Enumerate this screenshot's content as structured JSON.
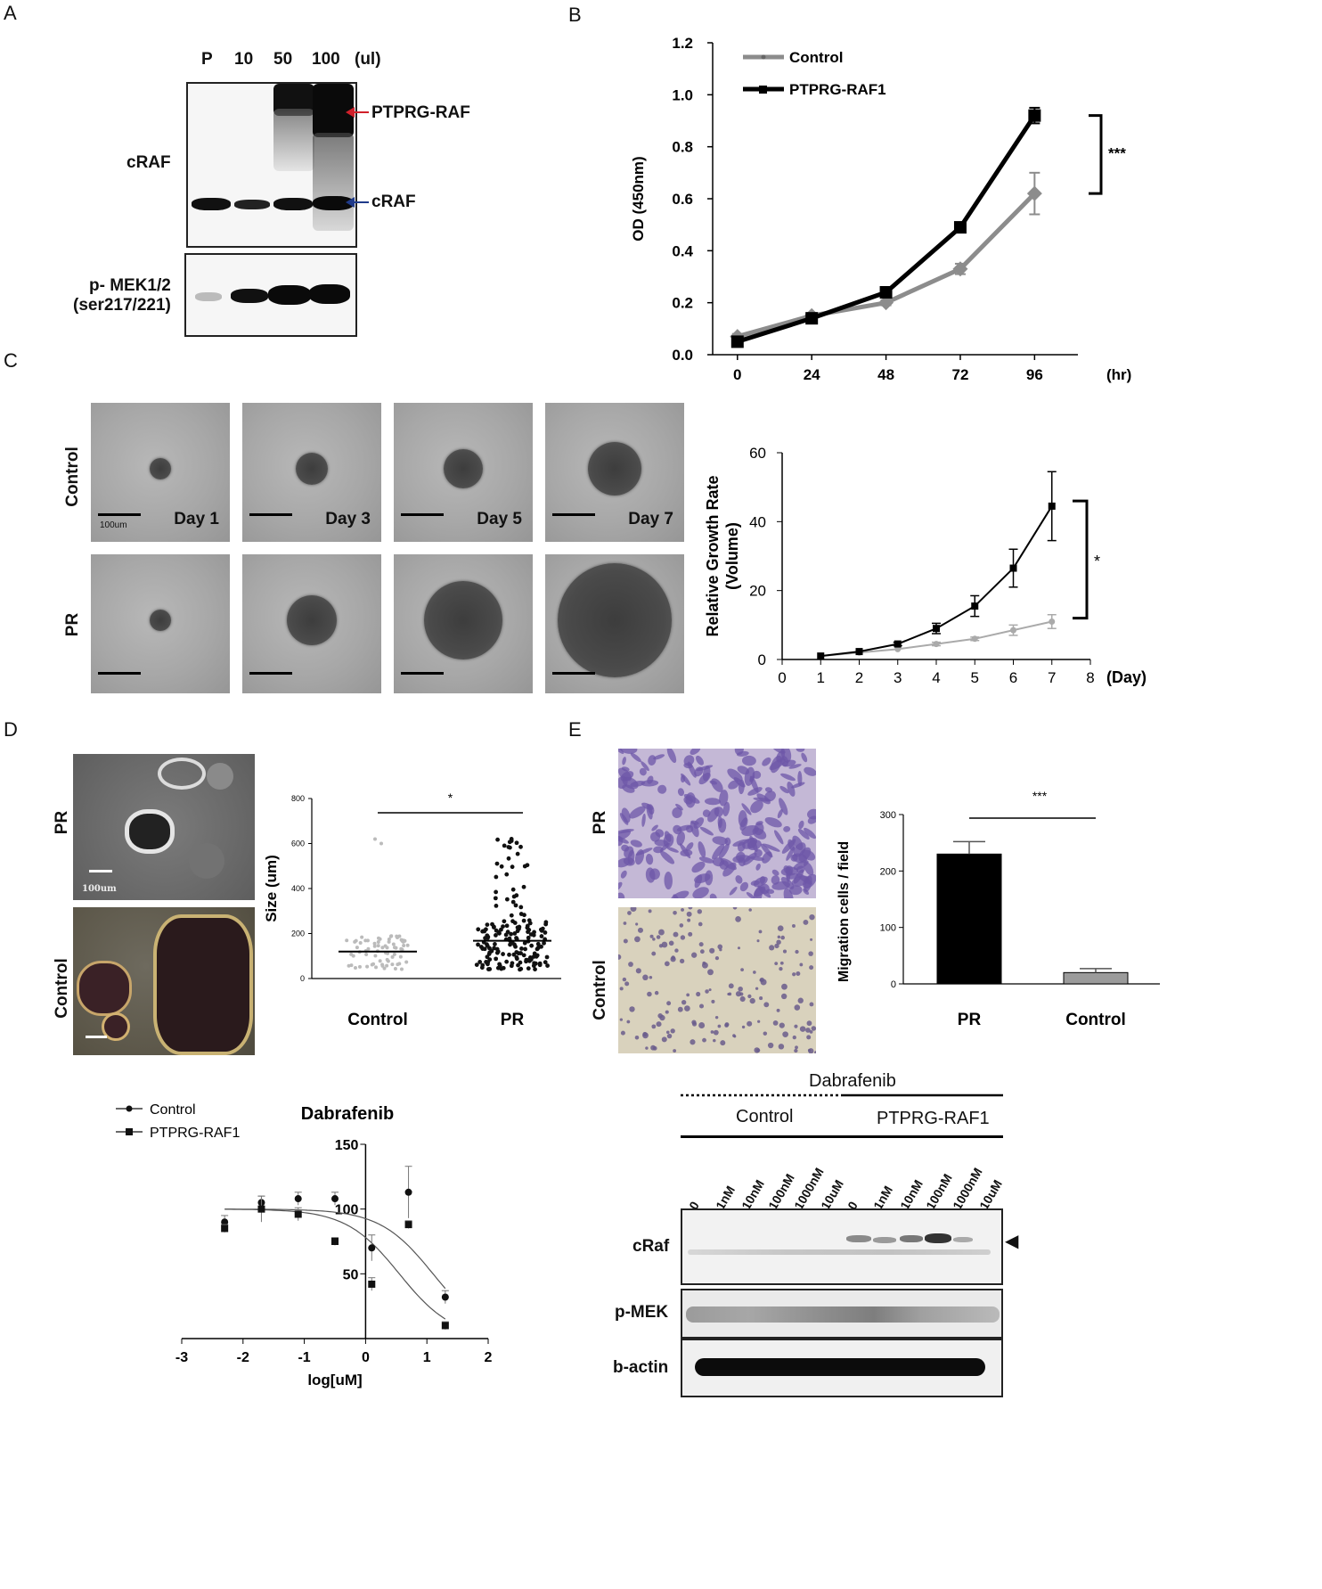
{
  "panels": {
    "A": "A",
    "B": "B",
    "C": "C",
    "D": "D",
    "E": "E"
  },
  "panelA": {
    "lanes": [
      "P",
      "10",
      "50",
      "100",
      "(ul)"
    ],
    "row1_label": "cRAF",
    "arrow_fusion": "PTPRG-RAF",
    "arrow_wt": "cRAF",
    "row2_label_1": "p- MEK1/2",
    "row2_label_2": "(ser217/221)"
  },
  "panelC": {
    "rows": [
      "Control",
      "PR"
    ],
    "days": [
      "Day 1",
      "Day 3",
      "Day 5",
      "Day 7"
    ],
    "scale": "100um"
  },
  "panelD": {
    "rows": [
      "PR",
      "Control"
    ],
    "scale": "100um"
  },
  "panelE": {
    "rows": [
      "PR",
      "Control"
    ]
  },
  "blot": {
    "drug": "Dabrafenib",
    "groups": [
      "Control",
      "PTPRG-RAF1"
    ],
    "doses": [
      "0",
      "1nM",
      "10nM",
      "100nM",
      "1000nM",
      "10uM",
      "0",
      "1nM",
      "10nM",
      "100nM",
      "1000nM",
      "10uM"
    ],
    "rows": [
      "cRaf",
      "p-MEK",
      "b-actin"
    ],
    "arrow": "◀"
  },
  "chart_data": [
    {
      "id": "B",
      "type": "line",
      "x": [
        0,
        24,
        48,
        72,
        96
      ],
      "xunit": "(hr)",
      "ylabel": "OD (450nm)",
      "ylim": [
        0.0,
        1.2
      ],
      "yticks": [
        "0.0",
        "0.2",
        "0.4",
        "0.6",
        "0.8",
        "1.0",
        "1.2"
      ],
      "series": [
        {
          "name": "Control",
          "values": [
            0.07,
            0.15,
            0.2,
            0.33,
            0.62
          ],
          "err": [
            0.01,
            0.01,
            0.01,
            0.02,
            0.08
          ],
          "color": "#8c8c8c"
        },
        {
          "name": "PTPRG-RAF1",
          "values": [
            0.05,
            0.14,
            0.24,
            0.49,
            0.92
          ],
          "err": [
            0.01,
            0.01,
            0.01,
            0.01,
            0.03
          ],
          "color": "#000000"
        }
      ],
      "significance": "***"
    },
    {
      "id": "C",
      "type": "line",
      "x": [
        1,
        2,
        3,
        4,
        5,
        6,
        7
      ],
      "xticks": [
        0,
        1,
        2,
        3,
        4,
        5,
        6,
        7,
        8
      ],
      "xunit": "(Day)",
      "ylabel": "Relative Growth Rate",
      "ylabel2": "(Volume)",
      "ylim": [
        0,
        60
      ],
      "yticks": [
        0,
        20,
        40,
        60
      ],
      "series": [
        {
          "name": "Control",
          "values": [
            1,
            2,
            3,
            4.5,
            6,
            8.5,
            11
          ],
          "err": [
            0,
            0,
            0,
            0.5,
            0.5,
            1.5,
            2
          ],
          "color": "#aaaaaa"
        },
        {
          "name": "PR",
          "values": [
            1,
            2.3,
            4.5,
            9,
            15.5,
            26.5,
            44.5
          ],
          "err": [
            0,
            0,
            0.5,
            1.5,
            3,
            5.5,
            10
          ],
          "color": "#000000"
        }
      ],
      "significance": "*"
    },
    {
      "id": "D",
      "type": "scatter",
      "categories": [
        "Control",
        "PR"
      ],
      "ylabel": "Size (um)",
      "ylim": [
        0,
        800
      ],
      "yticks": [
        0,
        200,
        400,
        600,
        800
      ],
      "medians": [
        120,
        168
      ],
      "significance": "*",
      "note": "Control: ~70 points mostly 60-200, outliers ~600-620; PR: ~160 points 40-630"
    },
    {
      "id": "E",
      "type": "bar",
      "categories": [
        "PR",
        "Control"
      ],
      "values": [
        230,
        20
      ],
      "err": [
        22,
        7
      ],
      "colors": [
        "#000000",
        "#9b9b9b"
      ],
      "ylabel": "Migration cells / field",
      "ylim": [
        0,
        300
      ],
      "yticks": [
        0,
        100,
        200,
        300
      ],
      "significance": "***"
    },
    {
      "id": "Dose",
      "type": "scatter",
      "title": "Dabrafenib",
      "xlabel": "log[uM]",
      "xlim": [
        -3,
        2
      ],
      "xticks": [
        -3,
        -2,
        -1,
        0,
        1,
        2
      ],
      "ylim": [
        0,
        150
      ],
      "yticks": [
        50,
        100,
        150
      ],
      "series": [
        {
          "name": "Control",
          "marker": "circle",
          "x": [
            -2.3,
            -1.7,
            -1.1,
            -0.5,
            0.1,
            0.7,
            1.3
          ],
          "y": [
            90,
            105,
            108,
            108,
            70,
            113,
            32
          ],
          "err": [
            5,
            5,
            5,
            5,
            10,
            20,
            5
          ],
          "curve_ic50": 0.55
        },
        {
          "name": "PTPRG-RAF1",
          "marker": "square",
          "x": [
            -2.3,
            -1.7,
            -1.1,
            -0.5,
            0.1,
            0.7,
            1.3
          ],
          "y": [
            85,
            100,
            96,
            75,
            42,
            88,
            10
          ],
          "err": [
            3,
            10,
            5,
            3,
            5,
            3,
            3
          ],
          "curve_ic50": 1.1
        }
      ]
    }
  ]
}
